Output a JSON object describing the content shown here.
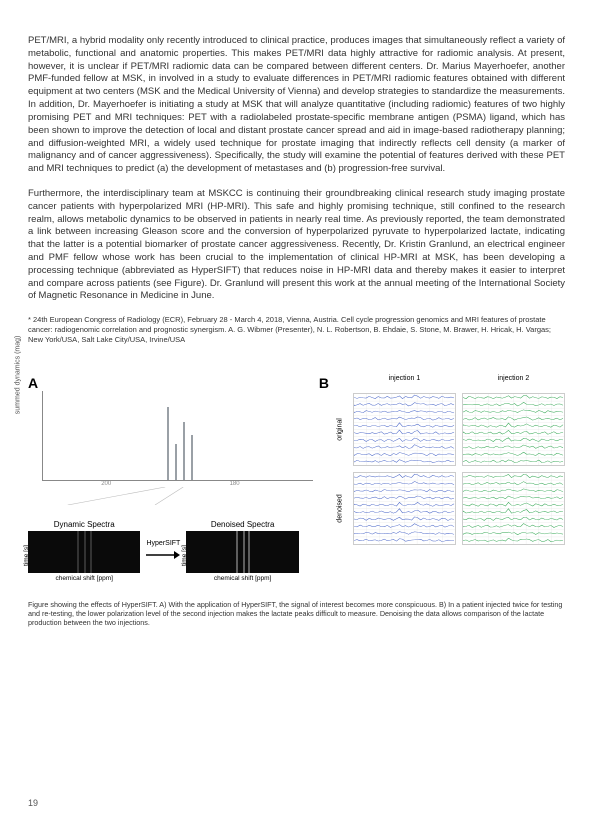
{
  "paragraphs": {
    "p1": "PET/MRI, a hybrid modality only recently introduced to clinical practice, produces images that simultaneously reflect a variety of metabolic, functional and anatomic properties. This makes PET/MRI data highly attractive for radiomic analysis. At present, however, it is unclear if PET/MRI radiomic data can be compared between different centers. Dr. Marius Mayerhoefer, another PMF-funded fellow at MSK, in involved in a study to evaluate differences in PET/MRI radiomic features obtained with different equipment at two centers (MSK and the Medical University of Vienna) and develop strategies to standardize the measurements.  In addition, Dr. Mayerhoefer is initiating a study at MSK that will analyze quantitative (including radiomic) features of two highly promising PET and MRI techniques: PET with a radiolabeled prostate-specific membrane antigen (PSMA) ligand, which has been shown to improve the detection of local and distant prostate cancer spread and aid in image-based radiotherapy planning; and diffusion-weighted MRI, a widely used technique for prostate imaging that indirectly reflects cell density (a marker of malignancy and of cancer aggressiveness). Specifically, the study will examine the potential of features derived with these PET and MRI techniques to predict (a) the development of metastases and (b) progression-free survival.",
    "p2": "Furthermore, the interdisciplinary team at MSKCC is continuing their groundbreaking clinical research study imaging prostate cancer patients with hyperpolarized MRI (HP-MRI). This safe and highly promising technique, still confined to the research realm, allows metabolic dynamics to be observed in patients in nearly real time. As previously reported, the team demonstrated a link between increasing Gleason score and the conversion of hyperpolarized pyruvate to hyperpolarized lactate, indicating that the latter is a potential biomarker of prostate cancer aggressiveness. Recently, Dr. Kristin Granlund, an electrical engineer and PMF fellow whose work has been crucial to the implementation of clinical HP-MRI at MSK, has been developing a processing technique (abbreviated as HyperSIFT) that reduces noise in HP-MRI data and thereby makes it easier to interpret and compare across patients (see Figure). Dr. Granlund will present this work at the annual meeting of the International Society of Magnetic Resonance in Medicine in June."
  },
  "citation": "* 24th European Congress of Radiology (ECR), February 28 - March 4, 2018, Vienna, Austria. Cell cycle progression genomics and MRI features of prostate cancer: radiogenomic correlation and prognostic synergism. A. G. Wibmer (Presenter), N. L. Robertson, B. Ehdaie, S. Stone, M. Brawer, H. Hricak, H. Vargas; New York/USA, Salt Lake City/USA, Irvine/USA",
  "figure": {
    "panelA": {
      "label": "A",
      "ylabel": "summed dynamics (mag)",
      "xticks": [
        "200",
        "180"
      ],
      "dynamic_title": "Dynamic Spectra",
      "denoised_title": "Denoised Spectra",
      "arrow_label": "HyperSIFT",
      "side_label": "time [s]",
      "xlabel": "chemical shift [ppm]",
      "peak_color": "#9aa0a6",
      "peaks": [
        {
          "left_pct": 46,
          "h": 82
        },
        {
          "left_pct": 49,
          "h": 40
        },
        {
          "left_pct": 52,
          "h": 65
        },
        {
          "left_pct": 55,
          "h": 50
        }
      ]
    },
    "panelB": {
      "label": "B",
      "inj1": "injection 1",
      "inj2": "injection 2",
      "row1": "original",
      "row2": "denoised",
      "color_blue": "#3f5dc4",
      "color_green": "#28a24a",
      "rows_per_box": 10
    },
    "caption": "Figure showing the effects of HyperSIFT. A) With the application of HyperSIFT, the signal of interest becomes more conspicuous. B) In a patient injected twice for testing and re-testing, the lower polarization level of the second injection makes the lactate peaks difficult to measure. Denoising the data allows comparison of the lactate production between the two injections."
  },
  "page_number": "19"
}
